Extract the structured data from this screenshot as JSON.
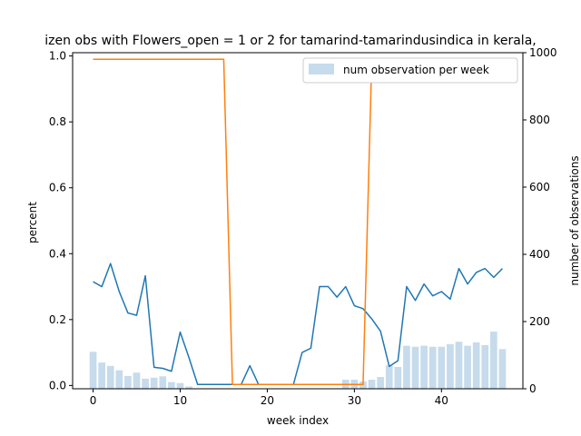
{
  "chart_data": {
    "type": "bar+line",
    "title": "izen obs with Flowers_open = 1 or 2 for tamarind-tamarindusindica in kerala,",
    "xlabel": "week index",
    "ylabel_left": "percent",
    "ylabel_right": "number of observations",
    "xlim": [
      -2.35,
      49.35
    ],
    "ylim_left": [
      -0.01,
      1.01
    ],
    "ylim_right": [
      0,
      1000
    ],
    "x_ticks": [
      0,
      10,
      20,
      30,
      40
    ],
    "y_left_ticks": [
      0.0,
      0.2,
      0.4,
      0.6,
      0.8,
      1.0
    ],
    "y_right_ticks": [
      0,
      200,
      400,
      600,
      800,
      1000
    ],
    "x_tick_labels": [
      "0",
      "10",
      "20",
      "30",
      "40"
    ],
    "y_left_tick_labels": [
      "0.0",
      "0.2",
      "0.4",
      "0.6",
      "0.8",
      "1.0"
    ],
    "y_right_tick_labels": [
      "0",
      "200",
      "400",
      "600",
      "800",
      "1000"
    ],
    "legend": {
      "placement": "top-right",
      "entries": [
        "num observation per week"
      ]
    },
    "grid": false,
    "colors": {
      "bars": "#c6dbec",
      "percent_line": "#1f77b4",
      "threshold_line": "#ff7f0e"
    },
    "x": [
      0,
      1,
      2,
      3,
      4,
      5,
      6,
      7,
      8,
      9,
      10,
      11,
      12,
      13,
      14,
      15,
      16,
      17,
      18,
      19,
      20,
      21,
      22,
      23,
      24,
      25,
      26,
      27,
      28,
      29,
      30,
      31,
      32,
      33,
      34,
      35,
      36,
      37,
      38,
      39,
      40,
      41,
      42,
      43,
      44,
      45,
      46,
      47
    ],
    "bars": {
      "name": "num observation per week",
      "values": [
        110,
        78,
        68,
        55,
        38,
        48,
        30,
        33,
        37,
        20,
        17,
        7,
        0,
        0,
        0,
        0,
        0,
        0,
        0,
        0,
        0,
        0,
        0,
        0,
        0,
        0,
        0,
        0,
        0,
        27,
        27,
        22,
        27,
        35,
        70,
        65,
        128,
        125,
        128,
        125,
        125,
        133,
        140,
        128,
        138,
        130,
        170,
        118
      ]
    },
    "series": [
      {
        "values": [
          0.315,
          0.3,
          0.37,
          0.285,
          0.22,
          0.213,
          0.333,
          0.055,
          0.052,
          0.043,
          0.162,
          0.085,
          0.003,
          0.003,
          0.003,
          0.003,
          0.003,
          0.003,
          0.06,
          0.003,
          0.003,
          0.003,
          0.003,
          0.003,
          0.1,
          0.113,
          0.3,
          0.3,
          0.268,
          0.3,
          0.242,
          0.233,
          0.202,
          0.165,
          0.058,
          0.075,
          0.3,
          0.258,
          0.308,
          0.272,
          0.285,
          0.262,
          0.355,
          0.308,
          0.343,
          0.355,
          0.328,
          0.355
        ]
      },
      {
        "values": [
          0.99,
          0.99,
          0.99,
          0.99,
          0.99,
          0.99,
          0.99,
          0.99,
          0.99,
          0.99,
          0.99,
          0.99,
          0.99,
          0.99,
          0.99,
          0.99,
          0.003,
          0.003,
          0.003,
          0.003,
          0.003,
          0.003,
          0.003,
          0.003,
          0.003,
          0.003,
          0.003,
          0.003,
          0.003,
          0.003,
          0.003,
          0.003,
          0.99,
          0.99,
          0.99,
          0.99,
          0.99,
          0.99,
          0.99,
          0.99,
          0.99,
          0.99,
          0.99,
          0.99,
          0.99,
          0.99,
          0.99,
          0.99
        ]
      }
    ]
  }
}
